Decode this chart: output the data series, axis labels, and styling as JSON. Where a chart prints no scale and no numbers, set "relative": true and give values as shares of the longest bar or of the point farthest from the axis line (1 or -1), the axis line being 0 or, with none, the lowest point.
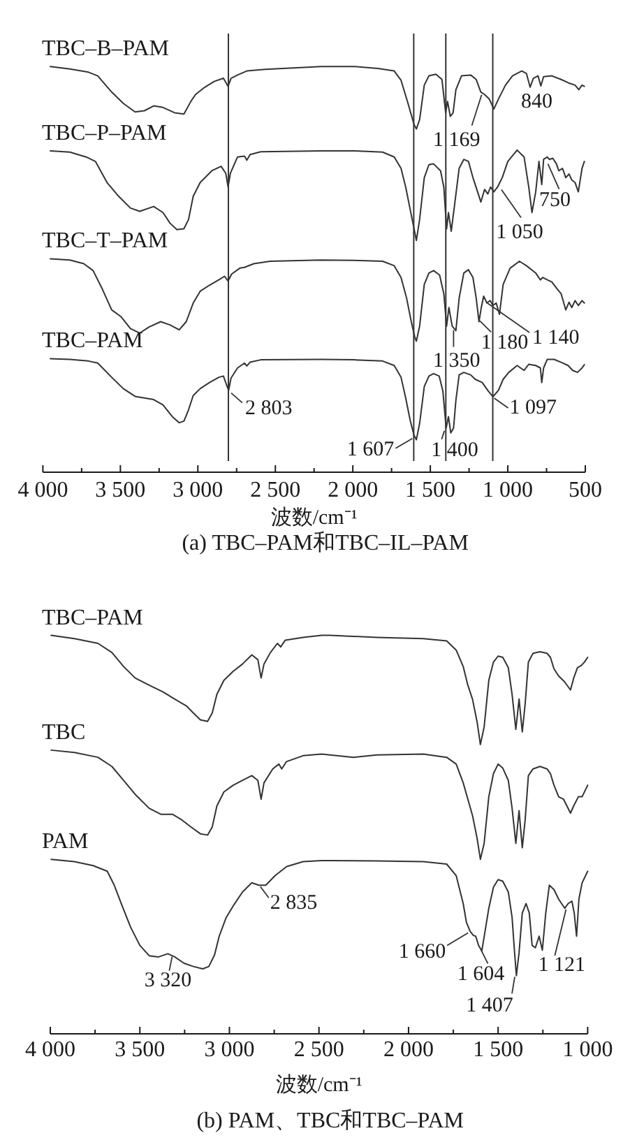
{
  "chart_data": [
    {
      "type": "line",
      "title": "(a) TBC–PAM和TBC–IL–PAM",
      "xlabel": "波数/cm⁻¹",
      "relative": true,
      "xlim": [
        4000,
        500
      ],
      "xticks": [
        {
          "value": 4000,
          "label": "4 000"
        },
        {
          "value": 3750,
          "label": null
        },
        {
          "value": 3500,
          "label": "3 500"
        },
        {
          "value": 3250,
          "label": null
        },
        {
          "value": 3000,
          "label": "3 000"
        },
        {
          "value": 2750,
          "label": null
        },
        {
          "value": 2500,
          "label": "2 500"
        },
        {
          "value": 2250,
          "label": null
        },
        {
          "value": 2000,
          "label": "2 000"
        },
        {
          "value": 1750,
          "label": null
        },
        {
          "value": 1500,
          "label": "1 500"
        },
        {
          "value": 1250,
          "label": null
        },
        {
          "value": 1000,
          "label": "1 000"
        },
        {
          "value": 750,
          "label": null
        },
        500
      ],
      "series": [
        {
          "name": "TBC–B–PAM",
          "color": "#333333",
          "x": [
            3952,
            3826,
            3706,
            3646,
            3556,
            3481,
            3405,
            3345,
            3285,
            3225,
            3150,
            3090,
            3045,
            3015,
            2955,
            2895,
            2835,
            2805,
            2786,
            2744,
            2684,
            2564,
            2204,
            1988,
            1838,
            1733,
            1689,
            1644,
            1605,
            1590,
            1569,
            1539,
            1509,
            1464,
            1425,
            1401,
            1389,
            1371,
            1353,
            1335,
            1299,
            1240,
            1204,
            1174,
            1150,
            1120,
            1090,
            1060,
            1015,
            970,
            910,
            880,
            856,
            835,
            805,
            787,
            769,
            716,
            656,
            611,
            566,
            542,
            521,
            506
          ],
          "values": [
            1,
            0.994,
            0.986,
            0.977,
            0.937,
            0.909,
            0.888,
            0.891,
            0.903,
            0.899,
            0.886,
            0.883,
            0.914,
            0.931,
            0.949,
            0.963,
            0.971,
            0.951,
            0.971,
            0.979,
            0.989,
            0.993,
            1,
            1,
            0.995,
            0.989,
            0.966,
            0.909,
            0.857,
            0.846,
            0.869,
            0.954,
            0.977,
            0.981,
            0.968,
            0.886,
            0.914,
            0.877,
            0.886,
            0.943,
            0.977,
            0.979,
            0.968,
            0.937,
            0.931,
            0.92,
            0.895,
            0.92,
            0.954,
            0.977,
            0.989,
            0.983,
            0.949,
            0.971,
            0.977,
            0.952,
            0.975,
            0.977,
            0.968,
            0.96,
            0.954,
            0.943,
            0.954,
            0.951
          ]
        },
        {
          "name": "TBC–P–PAM",
          "color": "#333333",
          "x": [
            3952,
            3826,
            3721,
            3661,
            3586,
            3511,
            3435,
            3375,
            3285,
            3225,
            3180,
            3135,
            3090,
            3060,
            3030,
            2985,
            2910,
            2850,
            2820,
            2805,
            2790,
            2744,
            2699,
            2684,
            2663,
            2594,
            2204,
            1988,
            1808,
            1733,
            1689,
            1659,
            1635,
            1605,
            1590,
            1569,
            1539,
            1509,
            1479,
            1434,
            1413,
            1395,
            1383,
            1365,
            1344,
            1314,
            1284,
            1254,
            1225,
            1195,
            1174,
            1150,
            1129,
            1111,
            1090,
            1066,
            1036,
            1000,
            940,
            895,
            865,
            844,
            820,
            799,
            781,
            769,
            746,
            731,
            710,
            686,
            671,
            647,
            626,
            605,
            587,
            566,
            545,
            521,
            506
          ],
          "values": [
            0.792,
            0.789,
            0.777,
            0.766,
            0.714,
            0.68,
            0.651,
            0.643,
            0.655,
            0.64,
            0.614,
            0.598,
            0.6,
            0.623,
            0.68,
            0.714,
            0.743,
            0.754,
            0.737,
            0.703,
            0.737,
            0.777,
            0.779,
            0.769,
            0.783,
            0.79,
            0.792,
            0.792,
            0.789,
            0.777,
            0.749,
            0.703,
            0.657,
            0.6,
            0.571,
            0.623,
            0.726,
            0.758,
            0.76,
            0.743,
            0.703,
            0.6,
            0.64,
            0.594,
            0.657,
            0.749,
            0.771,
            0.766,
            0.726,
            0.691,
            0.666,
            0.697,
            0.686,
            0.703,
            0.691,
            0.703,
            0.726,
            0.766,
            0.794,
            0.777,
            0.703,
            0.64,
            0.691,
            0.766,
            0.709,
            0.771,
            0.777,
            0.771,
            0.774,
            0.76,
            0.743,
            0.749,
            0.726,
            0.735,
            0.72,
            0.714,
            0.691,
            0.749,
            0.766
          ]
        },
        {
          "name": "TBC–T–PAM",
          "color": "#333333",
          "x": [
            3952,
            3826,
            3736,
            3676,
            3616,
            3556,
            3495,
            3435,
            3375,
            3315,
            3240,
            3180,
            3120,
            3075,
            3030,
            2985,
            2925,
            2865,
            2828,
            2805,
            2783,
            2729,
            2699,
            2639,
            2534,
            2204,
            1988,
            1808,
            1733,
            1689,
            1653,
            1623,
            1599,
            1590,
            1569,
            1539,
            1509,
            1479,
            1440,
            1413,
            1395,
            1380,
            1359,
            1335,
            1314,
            1284,
            1254,
            1225,
            1204,
            1186,
            1171,
            1156,
            1135,
            1114,
            1096,
            1075,
            1054,
            1030,
            985,
            925,
            880,
            820,
            790,
            775,
            745,
            716,
            680,
            656,
            626,
            605,
            587,
            566,
            545,
            521,
            506
          ],
          "values": [
            0.526,
            0.523,
            0.514,
            0.497,
            0.451,
            0.4,
            0.383,
            0.354,
            0.343,
            0.358,
            0.371,
            0.363,
            0.351,
            0.371,
            0.417,
            0.446,
            0.461,
            0.474,
            0.483,
            0.471,
            0.488,
            0.503,
            0.505,
            0.514,
            0.52,
            0.523,
            0.522,
            0.52,
            0.509,
            0.48,
            0.429,
            0.371,
            0.331,
            0.323,
            0.36,
            0.463,
            0.491,
            0.497,
            0.486,
            0.44,
            0.36,
            0.406,
            0.36,
            0.349,
            0.429,
            0.491,
            0.499,
            0.48,
            0.429,
            0.371,
            0.406,
            0.434,
            0.417,
            0.423,
            0.411,
            0.417,
            0.389,
            0.463,
            0.503,
            0.52,
            0.509,
            0.491,
            0.474,
            0.48,
            0.474,
            0.469,
            0.451,
            0.44,
            0.4,
            0.419,
            0.406,
            0.423,
            0.411,
            0.423,
            0.417
          ]
        },
        {
          "name": "TBC–PAM",
          "color": "#333333",
          "x": [
            3952,
            3826,
            3706,
            3646,
            3556,
            3481,
            3405,
            3345,
            3285,
            3225,
            3165,
            3120,
            3090,
            3060,
            3030,
            2985,
            2925,
            2865,
            2835,
            2811,
            2801,
            2786,
            2744,
            2699,
            2684,
            2663,
            2594,
            2204,
            1988,
            1808,
            1733,
            1689,
            1659,
            1629,
            1605,
            1590,
            1569,
            1539,
            1509,
            1479,
            1443,
            1419,
            1398,
            1383,
            1368,
            1350,
            1335,
            1314,
            1284,
            1240,
            1210,
            1165,
            1126,
            1096,
            1060,
            1030,
            994,
            940,
            895,
            865,
            820,
            790,
            781,
            769,
            746,
            701,
            656,
            611,
            581,
            551,
            521,
            506
          ],
          "values": [
            0.28,
            0.278,
            0.274,
            0.269,
            0.234,
            0.206,
            0.187,
            0.183,
            0.179,
            0.166,
            0.137,
            0.122,
            0.126,
            0.154,
            0.189,
            0.206,
            0.221,
            0.234,
            0.237,
            0.211,
            0.202,
            0.232,
            0.257,
            0.269,
            0.262,
            0.271,
            0.277,
            0.278,
            0.277,
            0.274,
            0.263,
            0.234,
            0.183,
            0.126,
            0.091,
            0.08,
            0.12,
            0.211,
            0.237,
            0.243,
            0.237,
            0.2,
            0.109,
            0.137,
            0.097,
            0.109,
            0.177,
            0.24,
            0.246,
            0.24,
            0.229,
            0.221,
            0.2,
            0.186,
            0.202,
            0.229,
            0.246,
            0.263,
            0.251,
            0.266,
            0.263,
            0.257,
            0.221,
            0.257,
            0.278,
            0.278,
            0.271,
            0.263,
            0.251,
            0.246,
            0.257,
            0.265
          ]
        }
      ],
      "ref_lines": [
        {
          "axis": "x",
          "value": 2803,
          "color": "#333333"
        },
        {
          "axis": "x",
          "value": 1607,
          "color": "#333333"
        },
        {
          "axis": "x",
          "value": 1400,
          "color": "#333333"
        },
        {
          "axis": "x",
          "value": 1097,
          "color": "#333333"
        }
      ],
      "annotations": [
        {
          "text": "2 803",
          "x": 2803,
          "y": 0.202
        },
        {
          "text": "1 607",
          "x": 1607,
          "y": 0.09
        },
        {
          "text": "1 400",
          "x": 1400,
          "y": 0.109
        },
        {
          "text": "1 097",
          "x": 1097,
          "y": 0.186
        },
        {
          "text": "1 169",
          "x": 1169,
          "y": 0.937
        },
        {
          "text": "840",
          "x": 840,
          "y": 0.96
        },
        {
          "text": "1 050",
          "x": 1050,
          "y": 0.7
        },
        {
          "text": "750",
          "x": 750,
          "y": 0.777
        },
        {
          "text": "1 350",
          "x": 1350,
          "y": 0.357
        },
        {
          "text": "1 180",
          "x": 1180,
          "y": 0.38
        },
        {
          "text": "1 140",
          "x": 1140,
          "y": 0.42
        }
      ]
    },
    {
      "type": "line",
      "title": "(b) PAM、TBC和TBC–PAM",
      "xlabel": "波数/cm⁻¹",
      "relative": true,
      "xlim": [
        4000,
        1000
      ],
      "xticks": [
        {
          "value": 4000,
          "label": "4 000"
        },
        {
          "value": 3750,
          "label": null
        },
        {
          "value": 3500,
          "label": "3 500"
        },
        {
          "value": 3250,
          "label": null
        },
        {
          "value": 3000,
          "label": "3 000"
        },
        {
          "value": 2750,
          "label": null
        },
        {
          "value": 2500,
          "label": "2 500"
        },
        {
          "value": 2250,
          "label": null
        },
        {
          "value": 2000,
          "label": "2 000"
        },
        {
          "value": 1750,
          "label": null
        },
        {
          "value": 1500,
          "label": "1 500"
        },
        {
          "value": 1250,
          "label": null
        },
        {
          "value": 1000,
          "label": "1 000"
        }
      ],
      "series": [
        {
          "name": "TBC–PAM",
          "color": "#333333",
          "x": [
            3995,
            3865,
            3734,
            3656,
            3591,
            3526,
            3448,
            3370,
            3305,
            3240,
            3201,
            3162,
            3122,
            3096,
            3070,
            3031,
            2979,
            2927,
            2875,
            2841,
            2823,
            2807,
            2771,
            2732,
            2714,
            2688,
            2589,
            2485,
            2438,
            2177,
            1917,
            1787,
            1734,
            1695,
            1669,
            1643,
            1617,
            1599,
            1578,
            1552,
            1526,
            1500,
            1474,
            1443,
            1422,
            1401,
            1383,
            1365,
            1349,
            1331,
            1305,
            1266,
            1227,
            1208,
            1188,
            1162,
            1130,
            1096,
            1078,
            1057,
            1037,
            1018,
            1000
          ],
          "values": [
            1,
            0.992,
            0.98,
            0.957,
            0.922,
            0.893,
            0.875,
            0.858,
            0.84,
            0.823,
            0.805,
            0.788,
            0.784,
            0.805,
            0.852,
            0.887,
            0.91,
            0.928,
            0.951,
            0.939,
            0.893,
            0.928,
            0.957,
            0.98,
            0.971,
            0.988,
            0.995,
            1,
            1,
            0.995,
            0.992,
            0.986,
            0.963,
            0.922,
            0.875,
            0.84,
            0.782,
            0.726,
            0.77,
            0.887,
            0.933,
            0.948,
            0.945,
            0.919,
            0.852,
            0.764,
            0.84,
            0.758,
            0.828,
            0.933,
            0.955,
            0.959,
            0.955,
            0.945,
            0.916,
            0.898,
            0.884,
            0.863,
            0.893,
            0.919,
            0.924,
            0.933,
            0.945
          ]
        },
        {
          "name": "TBC",
          "color": "#333333",
          "x": [
            3995,
            3865,
            3734,
            3656,
            3591,
            3526,
            3448,
            3383,
            3318,
            3266,
            3214,
            3162,
            3122,
            3096,
            3070,
            3031,
            2979,
            2927,
            2875,
            2841,
            2823,
            2807,
            2758,
            2724,
            2708,
            2682,
            2589,
            2485,
            2438,
            2307,
            2177,
            1917,
            1787,
            1734,
            1695,
            1669,
            1643,
            1617,
            1599,
            1578,
            1552,
            1526,
            1500,
            1474,
            1443,
            1422,
            1401,
            1383,
            1365,
            1349,
            1331,
            1305,
            1266,
            1227,
            1208,
            1188,
            1162,
            1135,
            1096,
            1078,
            1052,
            1031,
            1000
          ],
          "values": [
            0.712,
            0.706,
            0.694,
            0.671,
            0.636,
            0.601,
            0.566,
            0.551,
            0.551,
            0.537,
            0.519,
            0.502,
            0.499,
            0.519,
            0.572,
            0.607,
            0.624,
            0.636,
            0.648,
            0.636,
            0.589,
            0.63,
            0.665,
            0.677,
            0.665,
            0.683,
            0.698,
            0.702,
            0.7,
            0.694,
            0.7,
            0.702,
            0.694,
            0.677,
            0.63,
            0.589,
            0.548,
            0.49,
            0.438,
            0.478,
            0.595,
            0.653,
            0.677,
            0.667,
            0.636,
            0.566,
            0.478,
            0.56,
            0.467,
            0.537,
            0.648,
            0.665,
            0.671,
            0.665,
            0.653,
            0.624,
            0.595,
            0.589,
            0.554,
            0.572,
            0.595,
            0.595,
            0.624
          ]
        },
        {
          "name": "PAM",
          "color": "#333333",
          "x": [
            3995,
            3865,
            3760,
            3682,
            3643,
            3604,
            3552,
            3500,
            3448,
            3396,
            3344,
            3305,
            3253,
            3201,
            3149,
            3115,
            3083,
            3057,
            3018,
            2979,
            2927,
            2875,
            2836,
            2797,
            2745,
            2680,
            2589,
            2485,
            2438,
            2177,
            1917,
            1787,
            1734,
            1695,
            1677,
            1656,
            1638,
            1625,
            1609,
            1591,
            1573,
            1552,
            1526,
            1500,
            1474,
            1443,
            1422,
            1409,
            1398,
            1383,
            1365,
            1344,
            1326,
            1310,
            1292,
            1271,
            1253,
            1234,
            1214,
            1188,
            1162,
            1128,
            1109,
            1088,
            1075,
            1062,
            1049,
            1031,
            1000
          ],
          "values": [
            0.438,
            0.432,
            0.422,
            0.408,
            0.373,
            0.327,
            0.268,
            0.222,
            0.196,
            0.193,
            0.201,
            0.193,
            0.177,
            0.169,
            0.163,
            0.169,
            0.198,
            0.245,
            0.292,
            0.321,
            0.356,
            0.379,
            0.373,
            0.373,
            0.397,
            0.42,
            0.432,
            0.435,
            0.435,
            0.434,
            0.432,
            0.426,
            0.397,
            0.327,
            0.28,
            0.257,
            0.247,
            0.245,
            0.222,
            0.208,
            0.257,
            0.315,
            0.368,
            0.387,
            0.383,
            0.356,
            0.292,
            0.21,
            0.146,
            0.204,
            0.303,
            0.327,
            0.303,
            0.222,
            0.216,
            0.245,
            0.21,
            0.303,
            0.373,
            0.362,
            0.338,
            0.315,
            0.327,
            0.333,
            0.303,
            0.245,
            0.338,
            0.379,
            0.408
          ]
        }
      ],
      "annotations": [
        {
          "text": "2 835",
          "x": 2835,
          "y": 0.373
        },
        {
          "text": "3 320",
          "x": 3320,
          "y": 0.197
        },
        {
          "text": "1 660",
          "x": 1660,
          "y": 0.257
        },
        {
          "text": "1 604",
          "x": 1604,
          "y": 0.215
        },
        {
          "text": "1 407",
          "x": 1407,
          "y": 0.15
        },
        {
          "text": "1 121",
          "x": 1121,
          "y": 0.319
        }
      ]
    }
  ]
}
